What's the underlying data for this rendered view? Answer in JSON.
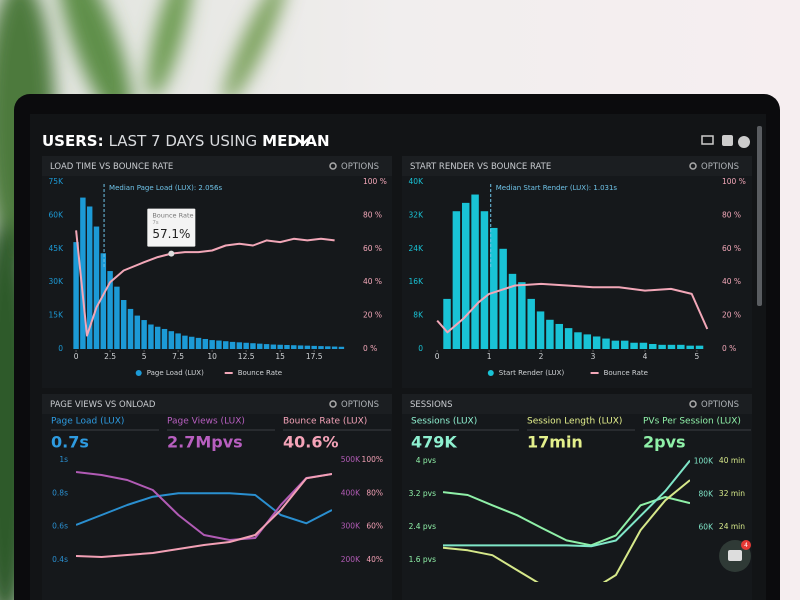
{
  "header": {
    "parts": [
      "USERS:",
      "LAST 7 DAYS",
      "USING",
      "MEDIAN"
    ]
  },
  "panels": [
    {
      "title": "LOAD TIME VS BOUNCE RATE",
      "options": "OPTIONS"
    },
    {
      "title": "START RENDER VS BOUNCE RATE",
      "options": "OPTIONS"
    },
    {
      "title": "PAGE VIEWS VS ONLOAD",
      "options": "OPTIONS",
      "metrics": [
        {
          "label": "Page Load (LUX)",
          "value": "0.7s",
          "color": "#2e9be0"
        },
        {
          "label": "Page Views (LUX)",
          "value": "2.7Mpvs",
          "color": "#b85fc0"
        },
        {
          "label": "Bounce Rate (LUX)",
          "value": "40.6%",
          "color": "#f4a3b8"
        }
      ]
    },
    {
      "title": "SESSIONS",
      "options": "OPTIONS",
      "metrics": [
        {
          "label": "Sessions (LUX)",
          "value": "479K",
          "color": "#8ef0d0"
        },
        {
          "label": "Session Length (LUX)",
          "value": "17min",
          "color": "#e4f08c"
        },
        {
          "label": "PVs Per Session (LUX)",
          "value": "2pvs",
          "color": "#8ff0a8"
        }
      ]
    }
  ],
  "chat_badge": "4",
  "chart_data": [
    {
      "type": "bar",
      "legend": "bottom",
      "grid": false,
      "x": [
        0,
        0.5,
        1,
        1.5,
        2,
        2.5,
        3,
        3.5,
        4,
        4.5,
        5,
        5.5,
        6,
        6.5,
        7,
        7.5,
        8,
        8.5,
        9,
        9.5,
        10,
        10.5,
        11,
        11.5,
        12,
        12.5,
        13,
        13.5,
        14,
        14.5,
        15,
        15.5,
        16,
        16.5,
        17,
        17.5,
        18,
        18.5,
        19,
        19.5
      ],
      "xlim": [
        -0.3,
        20.5
      ],
      "xticks": [
        0,
        2.5,
        5,
        7.5,
        10,
        12.5,
        15,
        17.5
      ],
      "ylim": [
        0,
        75000
      ],
      "yticks": [
        0,
        {
          "value": 15000,
          "label": "15K"
        },
        {
          "value": 30000,
          "label": "30K"
        },
        {
          "value": 45000,
          "label": "45K"
        },
        {
          "value": 60000,
          "label": "60K"
        },
        {
          "value": 75000,
          "label": "75K"
        }
      ],
      "y2lim": [
        0,
        100
      ],
      "y2ticks": [
        {
          "value": 0,
          "label": "0 %"
        },
        {
          "value": 20,
          "label": "20 %"
        },
        {
          "value": 40,
          "label": "40 %"
        },
        {
          "value": 60,
          "label": "60 %"
        },
        {
          "value": 80,
          "label": "80 %"
        },
        {
          "value": 100,
          "label": "100 %"
        }
      ],
      "series": [
        {
          "name": "Page Load (LUX)",
          "color": "#1c9ad6",
          "values": [
            48000,
            68000,
            64000,
            55000,
            43000,
            35000,
            28000,
            22000,
            18000,
            15000,
            13000,
            11000,
            10000,
            9000,
            8000,
            7000,
            6000,
            5500,
            5000,
            4500,
            4000,
            3800,
            3500,
            3200,
            3000,
            2800,
            2600,
            2400,
            2200,
            2000,
            1900,
            1800,
            1700,
            1600,
            1500,
            1400,
            1300,
            1200,
            1100,
            1000
          ]
        },
        {
          "name": "Bounce Rate",
          "color": "#f2a7b8",
          "type": "line",
          "axis": "y2",
          "x": [
            0,
            0.8,
            1.5,
            2.5,
            3.5,
            5,
            6,
            7,
            8,
            9,
            10,
            11,
            12,
            13,
            14,
            15,
            16,
            17,
            18,
            19
          ],
          "values": [
            71,
            8,
            25,
            40,
            47,
            52,
            55,
            57.1,
            58,
            58,
            59,
            62,
            63,
            62,
            65,
            64,
            66,
            65,
            66,
            65
          ]
        }
      ],
      "median": {
        "value": 2.056,
        "label": "Median Page Load (LUX): 2.056s"
      },
      "tooltip": {
        "title": "Bounce Rate",
        "x": 7,
        "x_label": "7s",
        "value": 57.1,
        "value_label": "57.1%"
      }
    },
    {
      "type": "bar",
      "legend": "bottom",
      "grid": false,
      "x": [
        0.19,
        0.37,
        0.55,
        0.73,
        0.91,
        1.09,
        1.27,
        1.45,
        1.63,
        1.81,
        1.99,
        2.17,
        2.35,
        2.53,
        2.71,
        2.89,
        3.07,
        3.25,
        3.43,
        3.61,
        3.79,
        3.97,
        4.15,
        4.33,
        4.51,
        4.69,
        4.87,
        5.05
      ],
      "xlim": [
        -0.08,
        5.29
      ],
      "xticks": [
        0,
        1,
        2,
        3,
        4,
        5
      ],
      "ylim": [
        0,
        40000
      ],
      "yticks": [
        0,
        {
          "value": 8000,
          "label": "8K"
        },
        {
          "value": 16000,
          "label": "16K"
        },
        {
          "value": 24000,
          "label": "24K"
        },
        {
          "value": 32000,
          "label": "32K"
        },
        {
          "value": 40000,
          "label": "40K"
        }
      ],
      "y2lim": [
        0,
        100
      ],
      "y2ticks": [
        {
          "value": 0,
          "label": "0 %"
        },
        {
          "value": 20,
          "label": "20 %"
        },
        {
          "value": 40,
          "label": "40 %"
        },
        {
          "value": 60,
          "label": "60 %"
        },
        {
          "value": 80,
          "label": "80 %"
        },
        {
          "value": 100,
          "label": "100 %"
        }
      ],
      "series": [
        {
          "name": "Start Render (LUX)",
          "color": "#19c3d6",
          "values": [
            12000,
            33000,
            35000,
            37000,
            33000,
            29000,
            24000,
            18000,
            16000,
            12000,
            9000,
            7000,
            6000,
            5000,
            4000,
            3500,
            3000,
            2500,
            2000,
            2000,
            1500,
            1500,
            1200,
            1000,
            1000,
            1000,
            800,
            800
          ]
        },
        {
          "name": "Bounce Rate",
          "color": "#f2a7b8",
          "type": "line",
          "axis": "y2",
          "x": [
            0,
            0.2,
            0.5,
            0.8,
            1,
            1.5,
            2,
            2.5,
            3,
            3.5,
            4,
            4.5,
            4.9,
            5.2
          ],
          "values": [
            17,
            10,
            18,
            28,
            33,
            38,
            39,
            38,
            37,
            37,
            35,
            36,
            33,
            12
          ]
        }
      ],
      "median": {
        "value": 1.031,
        "label": "Median Start Render (LUX): 1.031s"
      }
    },
    {
      "type": "line",
      "grid": false,
      "categories": [
        null,
        null,
        null,
        null,
        null,
        null,
        null,
        null,
        null,
        null,
        null
      ],
      "ylim": [
        0.28,
        1.06
      ],
      "yticks": [
        {
          "value": 0.4,
          "label": "0.4s"
        },
        {
          "value": 0.6,
          "label": "0.6s"
        },
        {
          "value": 0.8,
          "label": "0.8s"
        },
        {
          "value": 1,
          "label": "1s"
        }
      ],
      "y2lim": [
        140000,
        530000
      ],
      "y2ticks": [
        {
          "value": 200000,
          "label": "200K"
        },
        {
          "value": 300000,
          "label": "300K"
        },
        {
          "value": 400000,
          "label": "400K"
        },
        {
          "value": 500000,
          "label": "500K"
        }
      ],
      "y3lim": [
        28,
        106
      ],
      "y3ticks": [
        {
          "value": 40,
          "label": "40%"
        },
        {
          "value": 60,
          "label": "60%"
        },
        {
          "value": 80,
          "label": "80%"
        },
        {
          "value": 100,
          "label": "100%"
        }
      ],
      "series": [
        {
          "color": "#2a8fd0",
          "values": [
            0.61,
            0.67,
            0.73,
            0.78,
            0.8,
            0.8,
            0.8,
            0.79,
            0.67,
            0.62,
            0.7
          ]
        },
        {
          "color": "#b15bb5",
          "axis": "y2",
          "values": [
            464000,
            455000,
            440000,
            410000,
            335000,
            275000,
            260000,
            266000,
            365000,
            446000,
            458000
          ]
        },
        {
          "color": "#f2a0b5",
          "axis": "y3",
          "values": [
            42.4,
            41.8,
            43,
            44.2,
            46.6,
            49,
            50.8,
            55,
            70,
            89,
            91.6
          ]
        }
      ]
    },
    {
      "type": "line",
      "grid": false,
      "categories": [
        null,
        null,
        null,
        null,
        null,
        null,
        null,
        null,
        null,
        null,
        null
      ],
      "ylim": [
        1.12,
        4.27
      ],
      "yticks": [
        {
          "value": 1.6,
          "label": "1.6 pvs"
        },
        {
          "value": 2.4,
          "label": "2.4 pvs"
        },
        {
          "value": 3.2,
          "label": "3.2 pvs"
        },
        {
          "value": 4,
          "label": "4 pvs"
        }
      ],
      "y2lim": [
        28000,
        107000
      ],
      "y2ticks": [
        {
          "value": 60000,
          "label": "60K"
        },
        {
          "value": 80000,
          "label": "80K"
        },
        {
          "value": 100000,
          "label": "100K"
        }
      ],
      "y3lim": [
        11.2,
        42.7
      ],
      "y3ticks": [
        {
          "value": 24,
          "label": "24 min"
        },
        {
          "value": 32,
          "label": "32 min"
        },
        {
          "value": 40,
          "label": "40 min"
        }
      ],
      "series": [
        {
          "color": "#8ff0a8",
          "values": [
            3.25,
            3.18,
            2.93,
            2.69,
            2.38,
            2.08,
            1.96,
            2.2,
            2.93,
            3.13,
            2.98
          ]
        },
        {
          "color": "#7fe6c8",
          "axis": "y2",
          "values": [
            49000,
            49000,
            49000,
            49000,
            49000,
            49000,
            48500,
            52000,
            67000,
            82000,
            100600
          ]
        },
        {
          "color": "#d6e88a",
          "axis": "y3",
          "values": [
            19,
            18.4,
            17.2,
            13.6,
            10,
            8.7,
            8.7,
            12.4,
            23.3,
            30.5,
            35.4
          ]
        }
      ]
    }
  ]
}
